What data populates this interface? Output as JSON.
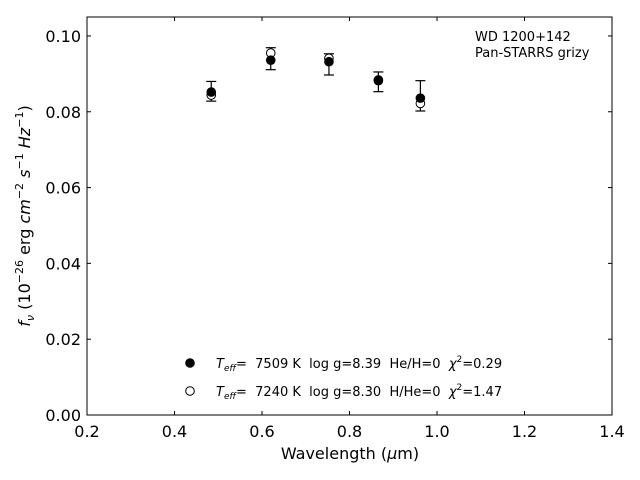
{
  "chart_data": {
    "type": "scatter",
    "title": "",
    "xlabel": {
      "prefix": "Wavelength (",
      "greek": "μ",
      "suffix": "m)"
    },
    "ylabel": {
      "f": "f",
      "sub": "ν",
      "scale": "(10",
      "exp": "−26",
      "unit1": " erg ",
      "cm": "cm",
      "cmexp": "−2",
      "s": "s",
      "sexp": "−1",
      "hz": "Hz",
      "hzexp": "−1",
      "close": ")"
    },
    "xlim": [
      0.2,
      1.4
    ],
    "ylim": [
      0.0,
      0.105
    ],
    "xticks": [
      0.2,
      0.4,
      0.6,
      0.8,
      1.0,
      1.2,
      1.4
    ],
    "xtick_labels": [
      "0.2",
      "0.4",
      "0.6",
      "0.8",
      "1.0",
      "1.2",
      "1.4"
    ],
    "yticks": [
      0.0,
      0.02,
      0.04,
      0.06,
      0.08,
      0.1
    ],
    "ytick_labels": [
      "0.00",
      "0.02",
      "0.04",
      "0.06",
      "0.08",
      "0.10"
    ],
    "grid": false,
    "annotation": [
      "WD 1200+142",
      "Pan-STARRS grizy"
    ],
    "observed": {
      "x": [
        0.484,
        0.62,
        0.753,
        0.866,
        0.962
      ],
      "y": [
        0.0854,
        0.094,
        0.0925,
        0.0879,
        0.0842
      ],
      "err": [
        0.0026,
        0.0029,
        0.0028,
        0.0026,
        0.004
      ]
    },
    "series": [
      {
        "marker": "filled",
        "teff": "T",
        "teff_sub": "eff",
        "label_rest": "=  7509 K  log g=8.39  He/H=0  ",
        "chi": "χ",
        "chi_exp": "2",
        "chi_val": "=0.29",
        "x": [
          0.484,
          0.62,
          0.753,
          0.866,
          0.962
        ],
        "y": [
          0.0852,
          0.0936,
          0.0932,
          0.0882,
          0.0836
        ]
      },
      {
        "marker": "open",
        "teff": "T",
        "teff_sub": "eff",
        "label_rest": "=  7240 K  log g=8.30  H/He=0  ",
        "chi": "χ",
        "chi_exp": "2",
        "chi_val": "=1.47",
        "x": [
          0.484,
          0.62,
          0.753,
          0.866,
          0.962
        ],
        "y": [
          0.0844,
          0.0955,
          0.0941,
          0.0884,
          0.0822
        ]
      }
    ],
    "legend_position": "lower-center"
  }
}
